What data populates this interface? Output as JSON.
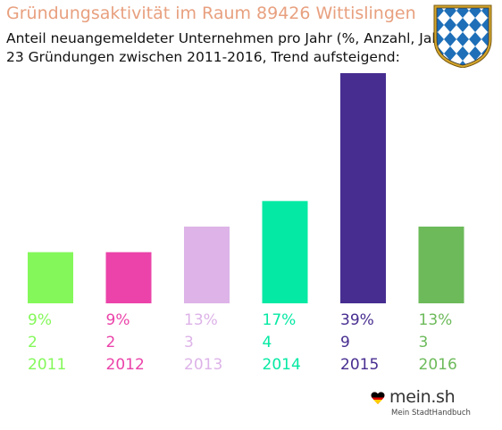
{
  "title": "Gründungsaktivität im Raum 89426 Wittislingen",
  "subtitle_line1": "Anteil neuangemeldeter Unternehmen pro Jahr (%, Anzahl, Jahr)",
  "subtitle_line2": "23 Gründungen zwischen 2011-2016, Trend aufsteigend:",
  "crest": {
    "icon": "bavaria-crest-icon",
    "colors": [
      "#1e6fb8",
      "#ffffff",
      "#d4a52a"
    ]
  },
  "logo": {
    "name": "mein.sh",
    "tagline": "Mein StadtHandbuch",
    "icon": "heart-flag-icon"
  },
  "chart_data": {
    "type": "bar",
    "categories": [
      "2011",
      "2012",
      "2013",
      "2014",
      "2015",
      "2016"
    ],
    "values": [
      2,
      2,
      3,
      4,
      9,
      3
    ],
    "percent_labels": [
      "9%",
      "9%",
      "13%",
      "17%",
      "39%",
      "13%"
    ],
    "colors": [
      "#84f85a",
      "#eb43a9",
      "#ddb3e8",
      "#04e9a3",
      "#472d90",
      "#6cba5a"
    ],
    "ylim": [
      0,
      9
    ],
    "grid": false,
    "legend": "none"
  }
}
